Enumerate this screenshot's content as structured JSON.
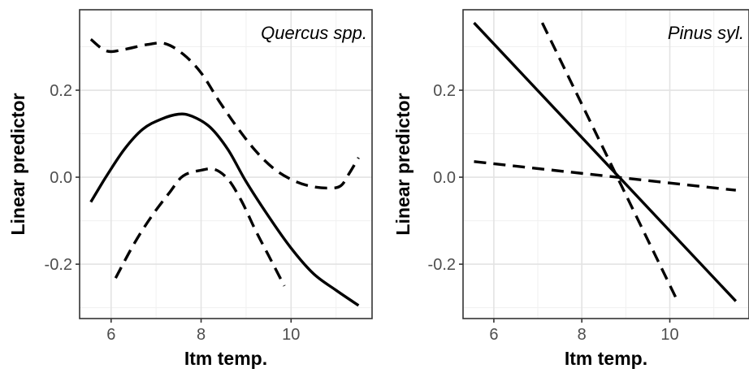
{
  "chart_data": [
    {
      "type": "line",
      "panel_label": "Quercus spp.",
      "xlabel": "Itm temp.",
      "ylabel": "Linear predictor",
      "xlim": [
        5.3,
        11.8
      ],
      "ylim": [
        -0.325,
        0.385
      ],
      "x_ticks": [
        6,
        8,
        10
      ],
      "y_ticks": [
        -0.2,
        0.0,
        0.2
      ],
      "x_tick_labels": [
        "6",
        "8",
        "10"
      ],
      "y_tick_labels": [
        "-0.2",
        "0.0",
        "0.2"
      ],
      "grid": true,
      "series": [
        {
          "style": "solid",
          "x": [
            5.55,
            5.9,
            6.3,
            6.7,
            7.1,
            7.5,
            7.8,
            8.2,
            8.6,
            9.0,
            9.5,
            10.0,
            10.5,
            11.0,
            11.5
          ],
          "y": [
            -0.057,
            0.003,
            0.065,
            0.11,
            0.133,
            0.145,
            0.14,
            0.115,
            0.063,
            -0.01,
            -0.09,
            -0.163,
            -0.222,
            -0.26,
            -0.295
          ]
        },
        {
          "style": "dashed",
          "x": [
            5.55,
            5.9,
            6.3,
            6.8,
            7.2,
            7.6,
            8.0,
            8.4,
            8.8,
            9.2,
            9.6,
            10.0,
            10.4,
            10.8,
            11.1,
            11.3,
            11.5
          ],
          "y": [
            0.317,
            0.29,
            0.294,
            0.305,
            0.307,
            0.283,
            0.24,
            0.175,
            0.115,
            0.062,
            0.021,
            -0.005,
            -0.02,
            -0.025,
            -0.02,
            0.01,
            0.045
          ]
        },
        {
          "style": "dashed",
          "x": [
            6.1,
            6.5,
            6.9,
            7.3,
            7.6,
            8.0,
            8.3,
            8.6,
            8.9,
            9.2,
            9.5,
            9.85
          ],
          "y": [
            -0.232,
            -0.155,
            -0.09,
            -0.035,
            0.003,
            0.016,
            0.018,
            -0.005,
            -0.055,
            -0.12,
            -0.18,
            -0.25
          ]
        }
      ]
    },
    {
      "type": "line",
      "panel_label": "Pinus syl.",
      "xlabel": "Itm temp.",
      "ylabel": "Linear predictor",
      "xlim": [
        5.3,
        11.8
      ],
      "ylim": [
        -0.325,
        0.385
      ],
      "x_ticks": [
        6,
        8,
        10
      ],
      "y_ticks": [
        -0.2,
        0.0,
        0.2
      ],
      "x_tick_labels": [
        "6",
        "8",
        "10"
      ],
      "y_tick_labels": [
        "-0.2",
        "0.0",
        "0.2"
      ],
      "grid": true,
      "series": [
        {
          "style": "solid",
          "x": [
            5.55,
            11.5
          ],
          "y": [
            0.355,
            -0.285
          ]
        },
        {
          "style": "dashed",
          "x": [
            7.1,
            10.2
          ],
          "y": [
            0.355,
            -0.29
          ]
        },
        {
          "style": "dashed",
          "x": [
            5.55,
            11.5
          ],
          "y": [
            0.036,
            -0.03
          ]
        }
      ]
    }
  ]
}
